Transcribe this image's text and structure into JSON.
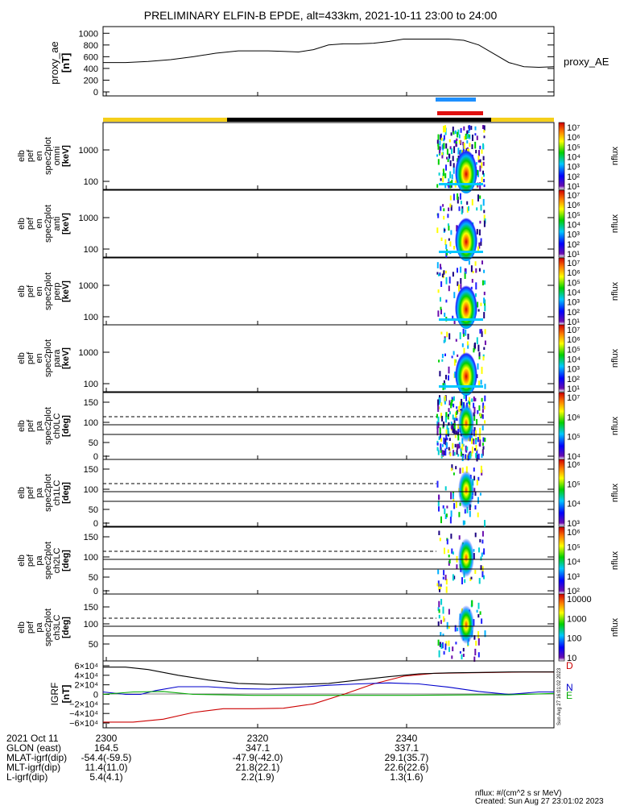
{
  "title": "PRELIMINARY ELFIN-B EPDE, alt=433km, 2021-10-11 23:00 to 24:00",
  "colors": {
    "yellow": "#f5cf1a",
    "black": "#000000",
    "blue_bar": "#1e90ff",
    "red_bar": "#e01010",
    "trace": "#000000",
    "N": "#0000cc",
    "E": "#00aa00",
    "D": "#cc0000"
  },
  "chart_data": [
    {
      "type": "line",
      "name": "proxy_ae",
      "ylabel": [
        "proxy_ae",
        "[nT]"
      ],
      "yticks": [
        "1000",
        "800",
        "600",
        "400",
        "200",
        "0"
      ],
      "ylim": [
        0,
        1100
      ],
      "xlim": [
        0,
        60
      ],
      "series": [
        {
          "name": "proxy_AE",
          "x": [
            0,
            3,
            6,
            9,
            12,
            15,
            18,
            20,
            22,
            24,
            26,
            28,
            30,
            32,
            34,
            36,
            38,
            40,
            42,
            44,
            46,
            48,
            50,
            52,
            54,
            56,
            58,
            60
          ],
          "y": [
            500,
            500,
            520,
            550,
            600,
            660,
            700,
            700,
            700,
            690,
            680,
            720,
            800,
            820,
            820,
            830,
            860,
            900,
            900,
            900,
            900,
            880,
            800,
            650,
            500,
            430,
            420,
            430
          ]
        }
      ]
    },
    {
      "type": "heatmap",
      "name": "en_spectrograms",
      "panels": [
        {
          "label": [
            "elb",
            "pef",
            "en",
            "spec2plot",
            "omni",
            "[keV]"
          ],
          "yticks": [
            "1000",
            "100"
          ]
        },
        {
          "label": [
            "elb",
            "pef",
            "en",
            "spec2plot",
            "anti",
            "[keV]"
          ],
          "yticks": [
            "1000",
            "100"
          ]
        },
        {
          "label": [
            "elb",
            "pef",
            "en",
            "spec2plot",
            "perp",
            "[keV]"
          ],
          "yticks": [
            "1000",
            "100"
          ]
        },
        {
          "label": [
            "elb",
            "pef",
            "en",
            "spec2plot",
            "para",
            "[keV]"
          ],
          "yticks": [
            "1000",
            "100"
          ]
        }
      ],
      "colorbar_label": "nflux",
      "colorbar_ticks": [
        "10⁷",
        "10⁶",
        "10⁵",
        "10⁴",
        "10³",
        "10²",
        "10¹"
      ]
    },
    {
      "type": "heatmap",
      "name": "pa_spectrograms",
      "panels": [
        {
          "label": [
            "elb",
            "pef",
            "pa",
            "spec2plot",
            "ch0LC",
            "[deg]"
          ],
          "yticks": [
            "150",
            "100",
            "50",
            "0"
          ],
          "cbticks": [
            "10⁷",
            "10⁶",
            "10⁵",
            "10⁴"
          ]
        },
        {
          "label": [
            "elb",
            "pef",
            "pa",
            "spec2plot",
            "ch1LC",
            "[deg]"
          ],
          "yticks": [
            "150",
            "100",
            "50",
            "0"
          ],
          "cbticks": [
            "10⁶",
            "10⁵",
            "10⁴",
            "10³"
          ]
        },
        {
          "label": [
            "elb",
            "pef",
            "pa",
            "spec2plot",
            "ch2LC",
            "[deg]"
          ],
          "yticks": [
            "150",
            "100",
            "50",
            "0"
          ],
          "cbticks": [
            "10⁶",
            "10⁵",
            "10⁴",
            "10³",
            "10²"
          ]
        },
        {
          "label": [
            "elb",
            "pef",
            "pa",
            "spec2plot",
            "ch3LC",
            "[deg]"
          ],
          "yticks": [
            "150",
            "100",
            "50"
          ],
          "cbticks": [
            "10000",
            "1000",
            "100",
            "10"
          ]
        }
      ],
      "colorbar_label": "nflux"
    },
    {
      "type": "line",
      "name": "IGRF",
      "ylabel": [
        "IGRF",
        "[nT]"
      ],
      "yticks": [
        "6×10⁴",
        "4×10⁴",
        "2×10⁴",
        "0",
        "−2×10⁴",
        "−4×10⁴",
        "−6×10⁴"
      ],
      "ylim": [
        -65000,
        65000
      ],
      "xlim": [
        0,
        60
      ],
      "legend": [
        "D",
        "N",
        "E"
      ],
      "series": [
        {
          "name": "D",
          "x": [
            0,
            4,
            8,
            12,
            16,
            20,
            24,
            28,
            32,
            36,
            40,
            44,
            48,
            52,
            56,
            60
          ],
          "y": [
            -58000,
            -58000,
            -52000,
            -38000,
            -30000,
            -30000,
            -29000,
            -20000,
            0,
            22000,
            38000,
            44000,
            45000,
            46000,
            47000,
            47000
          ]
        },
        {
          "name": "N",
          "x": [
            0,
            3,
            5,
            7,
            10,
            14,
            18,
            22,
            26,
            30,
            34,
            38,
            42,
            46,
            50,
            54,
            58,
            60
          ],
          "y": [
            5000,
            0,
            0,
            8000,
            16000,
            16000,
            12000,
            11000,
            15000,
            19000,
            22000,
            24000,
            22000,
            15000,
            6000,
            0,
            5000,
            5000
          ]
        },
        {
          "name": "E",
          "x": [
            0,
            4,
            8,
            12,
            20,
            30,
            40,
            50,
            54,
            58,
            60
          ],
          "y": [
            0,
            5000,
            6000,
            0,
            -2000,
            -2000,
            -2000,
            -1000,
            -1000,
            1000,
            2000
          ]
        },
        {
          "name": "total",
          "x": [
            0,
            3,
            6,
            10,
            14,
            18,
            22,
            26,
            30,
            34,
            38,
            42,
            46,
            50,
            54,
            58,
            60
          ],
          "y": [
            57000,
            57000,
            52000,
            40000,
            30000,
            23000,
            21000,
            21000,
            23000,
            30000,
            37000,
            43000,
            45000,
            46000,
            47000,
            47000,
            47000
          ]
        }
      ]
    }
  ],
  "side_label_ae": "proxy_AE",
  "stamp": "Sun Aug 27 16:01:02 2023",
  "footer": {
    "rows": [
      {
        "label": "2021 Oct 11",
        "v": [
          "2300",
          "2320",
          "2340"
        ]
      },
      {
        "label": "GLON (east)",
        "v": [
          "164.5",
          "347.1",
          "337.1"
        ]
      },
      {
        "label": "MLAT-igrf(dip)",
        "v": [
          "-54.4(-59.5)",
          "-47.9(-42.0)",
          "29.1(35.7)"
        ]
      },
      {
        "label": "MLT-igrf(dip)",
        "v": [
          "11.4(11.0)",
          "21.8(22.1)",
          "22.6(22.6)"
        ]
      },
      {
        "label": "L-igrf(dip)",
        "v": [
          "5.4(4.1)",
          "2.2(1.9)",
          "1.3(1.6)"
        ]
      }
    ],
    "nflux_units": "nflux: #/(cm^2 s sr MeV)",
    "created": "Created: Sun Aug 27 23:01:02 2023"
  }
}
